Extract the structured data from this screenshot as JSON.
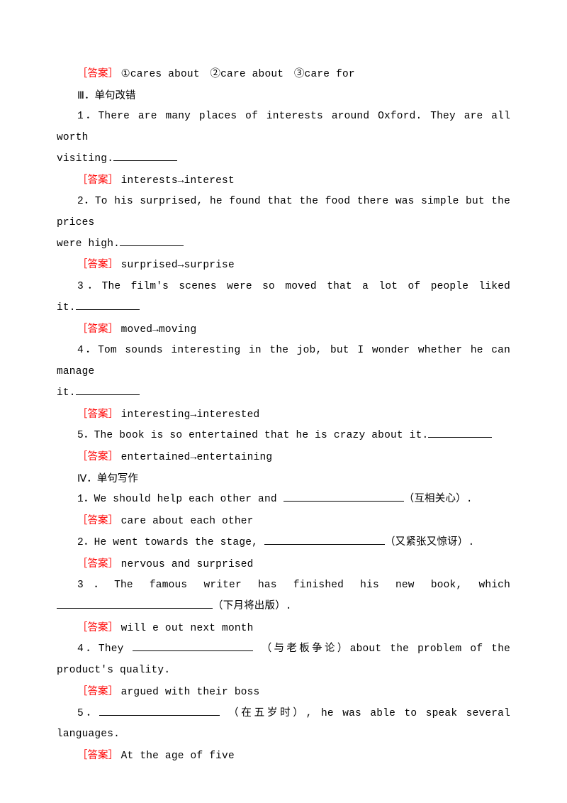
{
  "topAnswer": {
    "label": "［答案］",
    "text": "①cares about　②care about　③care for"
  },
  "section3": {
    "heading": "Ⅲ．单句改错",
    "items": [
      {
        "q_line1": "1．There are many places of interests around Oxford. They are all worth",
        "q_line2": "visiting.",
        "a_label": "［答案］",
        "a_text": "interests→interest"
      },
      {
        "q_line1": "2．To his surprised, he found that the food there was simple but the prices",
        "q_line2": "were high.",
        "a_label": "［答案］",
        "a_text": "surprised→surprise"
      },
      {
        "q_line1": "3．The film's scenes were so moved that a lot of people liked",
        "q_line2": "it.",
        "a_label": "［答案］",
        "a_text": "moved→moving"
      },
      {
        "q_line1": "4．Tom sounds interesting in the job, but I wonder whether he can manage",
        "q_line2": "it.",
        "a_label": "［答案］",
        "a_text": "interesting→interested"
      },
      {
        "q_single": "5．The book is so entertained that he is crazy about it.",
        "a_label": "［答案］",
        "a_text": "entertained→entertaining"
      }
    ]
  },
  "section4": {
    "heading": "Ⅳ．单句写作",
    "items": [
      {
        "q_pre": "1．We should help each other and ",
        "q_post": "（互相关心）.",
        "a_label": "［答案］",
        "a_text": "care about each other"
      },
      {
        "q_pre": "2．He went towards the stage, ",
        "q_post": "（又紧张又惊讶）.",
        "a_label": "［答案］",
        "a_text": "nervous and surprised"
      },
      {
        "q_line1": "3．The famous writer has finished his new book, which",
        "q_post": "（下月将出版）.",
        "a_label": "［答案］",
        "a_text": "will e out next month"
      },
      {
        "q_line1_pre": "4．They ",
        "q_line1_mid": "（与老板争论）about the problem of the",
        "q_line2": "product's quality.",
        "a_label": "［答案］",
        "a_text": "argued with their boss"
      },
      {
        "q_line1_pre": "5．",
        "q_line1_mid": "（在五岁时）, he was able to speak several",
        "q_line2": "languages.",
        "a_label": "［答案］",
        "a_text": "At the age of five"
      }
    ]
  }
}
